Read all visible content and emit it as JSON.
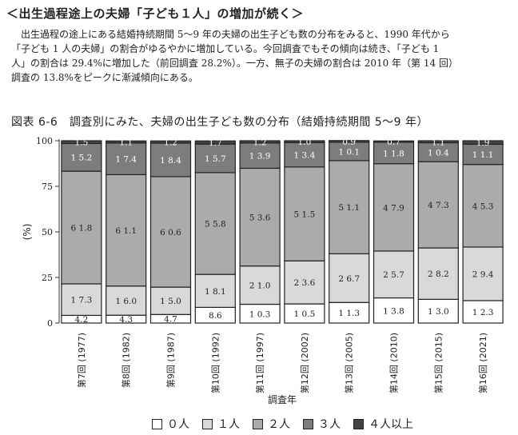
{
  "heading": "＜出生過程途上の夫婦「子ども１人」の増加が続く＞",
  "paragraph": {
    "line1": "出生過程の途上にある結婚持続期間 5～9 年の夫婦の出生子ども数の分布をみると、1990 年代から",
    "line2": "「子ども 1 人の夫婦」の割合がゆるやかに増加している。今回調査でもその傾向は続き、「子ども 1",
    "line3": "人」の割合は 29.4%に増加した（前回調査 28.2%）。一方、無子の夫婦の割合は 2010 年（第 14 回）",
    "line4": "調査の 13.8%をピークに漸減傾向にある。"
  },
  "figure_caption": "図表 6-6　調査別にみた、夫婦の出生子ども数の分布（結婚持続期間 5～9 年）",
  "chart_data": {
    "type": "bar",
    "stacked": true,
    "title": "調査別にみた、夫婦の出生子ども数の分布（結婚持続期間 5～9 年）",
    "xlabel": "調査年",
    "ylabel": "(%)",
    "ylim": [
      0,
      100
    ],
    "yticks": [
      0,
      25,
      50,
      75,
      100
    ],
    "categories": [
      "第7回 (1977)",
      "第8回 (1982)",
      "第9回 (1987)",
      "第10回 (1992)",
      "第11回 (1997)",
      "第12回 (2002)",
      "第13回 (2005)",
      "第14回 (2010)",
      "第15回 (2015)",
      "第16回 (2021)"
    ],
    "series": [
      {
        "name": "０人",
        "color": "#ffffff",
        "values": [
          4.2,
          4.3,
          4.7,
          8.6,
          10.3,
          10.5,
          11.3,
          13.8,
          13.0,
          12.3
        ]
      },
      {
        "name": "１人",
        "color": "#d9d9d9",
        "values": [
          17.3,
          16.0,
          15.0,
          18.1,
          21.0,
          23.6,
          26.7,
          25.7,
          28.2,
          29.4
        ]
      },
      {
        "name": "２人",
        "color": "#ababab",
        "values": [
          61.8,
          61.1,
          60.6,
          55.8,
          53.6,
          51.5,
          51.1,
          47.9,
          47.3,
          45.3
        ]
      },
      {
        "name": "３人",
        "color": "#7d7d7d",
        "values": [
          15.2,
          17.4,
          18.4,
          15.7,
          13.9,
          13.4,
          10.1,
          11.8,
          10.4,
          11.1
        ]
      },
      {
        "name": "４人以上",
        "color": "#444444",
        "values": [
          1.5,
          1.1,
          1.2,
          1.7,
          1.2,
          1.0,
          0.9,
          0.7,
          1.1,
          1.9
        ]
      }
    ],
    "legend": "bottom"
  }
}
